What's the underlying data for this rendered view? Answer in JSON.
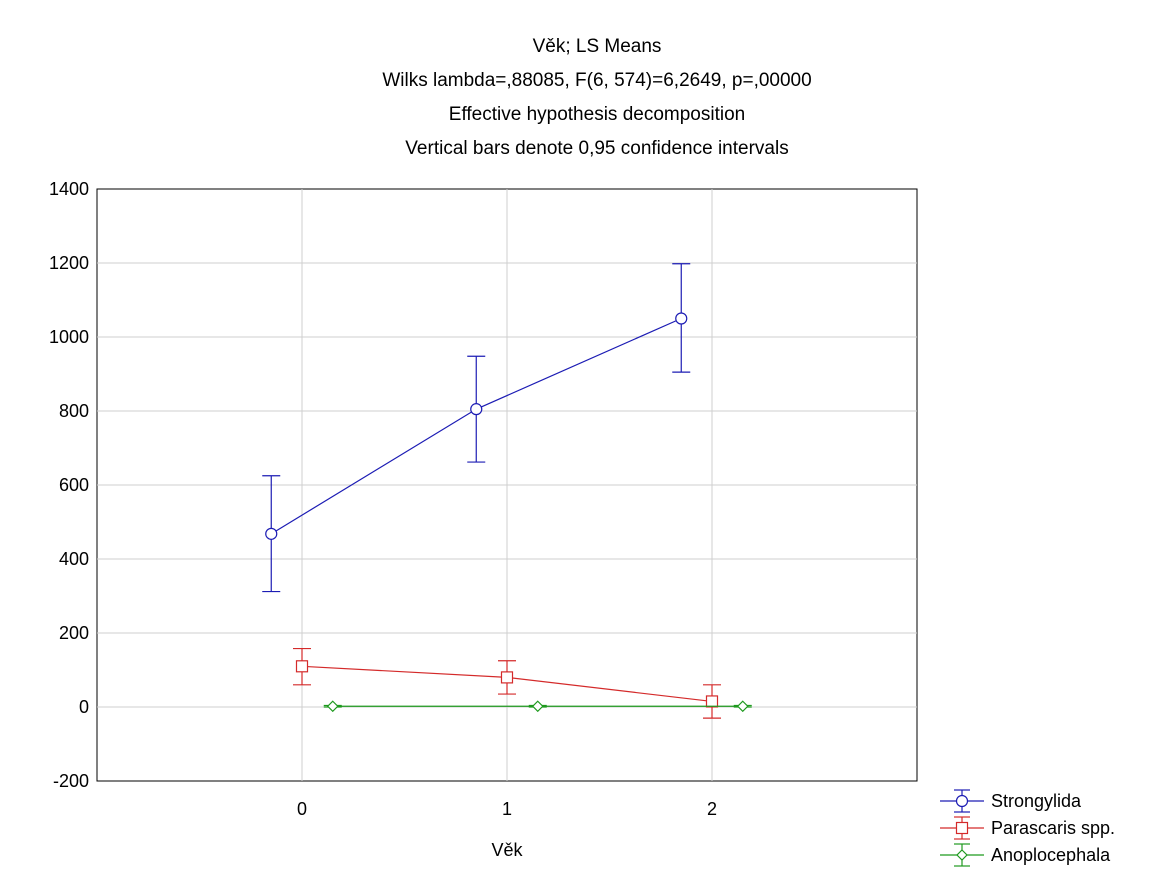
{
  "chart_data": {
    "type": "line",
    "title": "Věk; LS Means",
    "subtitle_lines": [
      "Wilks lambda=,88085, F(6, 574)=6,2649, p=,00000",
      "Effective hypothesis decomposition",
      "Vertical bars denote 0,95 confidence intervals"
    ],
    "xlabel": "Věk",
    "ylabel": "",
    "categories": [
      "0",
      "1",
      "2"
    ],
    "xlim": [
      -1,
      3
    ],
    "ylim": [
      -200,
      1400
    ],
    "yticks": [
      -200,
      0,
      200,
      400,
      600,
      800,
      1000,
      1200,
      1400
    ],
    "ytick_labels": [
      "-200",
      "0",
      "200",
      "400",
      "600",
      "800",
      "1000",
      "1200",
      "1400"
    ],
    "grid": true,
    "legend_position": "bottom-right, outside plot",
    "series": [
      {
        "name": "Strongylida",
        "color": "#1c1cb4",
        "marker": "circle",
        "x": [
          -0.15,
          0.85,
          1.85
        ],
        "values": [
          468,
          805,
          1050
        ],
        "ci_low": [
          312,
          662,
          905
        ],
        "ci_high": [
          625,
          948,
          1198
        ]
      },
      {
        "name": "Parascaris spp.",
        "color": "#d42a2a",
        "marker": "square",
        "x": [
          0,
          1,
          2
        ],
        "values": [
          110,
          80,
          15
        ],
        "ci_low": [
          60,
          35,
          -30
        ],
        "ci_high": [
          158,
          125,
          60
        ]
      },
      {
        "name": "Anoplocephala",
        "color": "#1f9a1f",
        "marker": "diamond",
        "x": [
          0.15,
          1.15,
          2.15
        ],
        "values": [
          2,
          2,
          2
        ],
        "ci_low": [
          0,
          0,
          0
        ],
        "ci_high": [
          4,
          4,
          4
        ]
      }
    ]
  }
}
